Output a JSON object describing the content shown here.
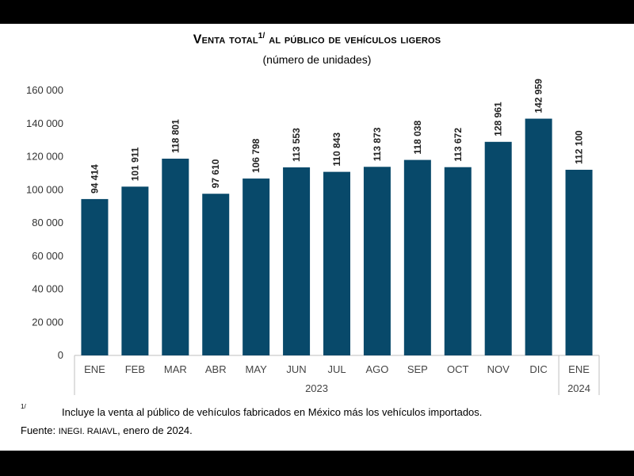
{
  "header": {
    "title_part1": "Venta total",
    "title_sup": "1/",
    "title_part2": " al público de vehículos ligeros",
    "subtitle": "(número de unidades)"
  },
  "footnote": {
    "mark": "1/",
    "text": "Incluye la venta al público de vehículos fabricados en México más los vehículos importados."
  },
  "source": {
    "label": "Fuente: ",
    "org": "INEGI. RAIAVL",
    "rest": ", enero de 2024."
  },
  "colors": {
    "bar": "#08496a",
    "grid": "#d9d9d9",
    "axis": "#bfbfbf"
  },
  "chart_data": {
    "type": "bar",
    "categories": [
      "ENE",
      "FEB",
      "MAR",
      "ABR",
      "MAY",
      "JUN",
      "JUL",
      "AGO",
      "SEP",
      "OCT",
      "NOV",
      "DIC",
      "ENE"
    ],
    "values": [
      94414,
      101911,
      118801,
      97610,
      106798,
      113553,
      110843,
      113873,
      118038,
      113672,
      128961,
      142959,
      112100
    ],
    "value_labels": [
      "94 414",
      "101 911",
      "118 801",
      "97 610",
      "106 798",
      "113 553",
      "110 843",
      "113 873",
      "118 038",
      "113 672",
      "128 961",
      "142 959",
      "112 100"
    ],
    "year_groups": [
      {
        "label": "2023",
        "count": 12
      },
      {
        "label": "2024",
        "count": 1
      }
    ],
    "yticks": [
      0,
      20000,
      40000,
      60000,
      80000,
      100000,
      120000,
      140000,
      160000
    ],
    "ytick_labels": [
      "0",
      "20 000",
      "40 000",
      "60 000",
      "80 000",
      "100 000",
      "120 000",
      "140 000",
      "160 000"
    ],
    "ylim": [
      0,
      160000
    ],
    "grid": false,
    "xlabel": "",
    "ylabel": ""
  }
}
